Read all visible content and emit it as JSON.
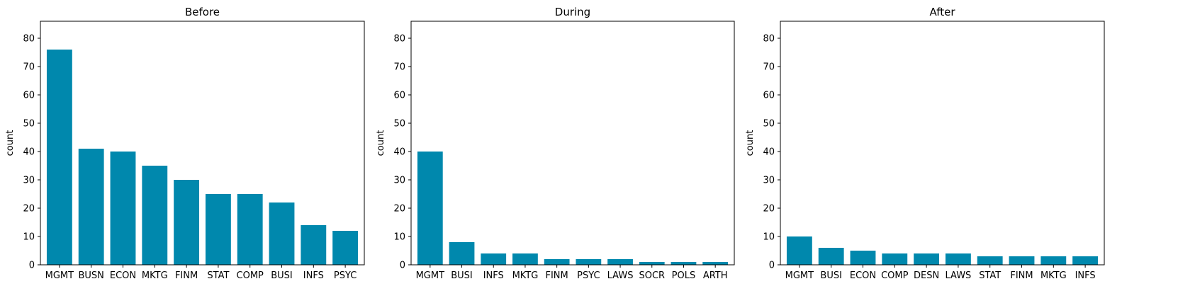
{
  "chart_data": [
    {
      "type": "bar",
      "title": "Before",
      "xlabel": "",
      "ylabel": "count",
      "ylim": [
        0,
        86
      ],
      "yticks": [
        0,
        10,
        20,
        30,
        40,
        50,
        60,
        70,
        80
      ],
      "categories": [
        "MGMT",
        "BUSN",
        "ECON",
        "MKTG",
        "FINM",
        "STAT",
        "COMP",
        "BUSI",
        "INFS",
        "PSYC"
      ],
      "values": [
        76,
        41,
        40,
        35,
        30,
        25,
        25,
        22,
        14,
        12
      ],
      "color": "#0088ad"
    },
    {
      "type": "bar",
      "title": "During",
      "xlabel": "",
      "ylabel": "count",
      "ylim": [
        0,
        86
      ],
      "yticks": [
        0,
        10,
        20,
        30,
        40,
        50,
        60,
        70,
        80
      ],
      "categories": [
        "MGMT",
        "BUSI",
        "INFS",
        "MKTG",
        "FINM",
        "PSYC",
        "LAWS",
        "SOCR",
        "POLS",
        "ARTH"
      ],
      "values": [
        40,
        8,
        4,
        4,
        2,
        2,
        2,
        1,
        1,
        1
      ],
      "color": "#0088ad"
    },
    {
      "type": "bar",
      "title": "After",
      "xlabel": "",
      "ylabel": "count",
      "ylim": [
        0,
        86
      ],
      "yticks": [
        0,
        10,
        20,
        30,
        40,
        50,
        60,
        70,
        80
      ],
      "categories": [
        "MGMT",
        "BUSI",
        "ECON",
        "COMP",
        "DESN",
        "LAWS",
        "STAT",
        "FINM",
        "MKTG",
        "INFS"
      ],
      "values": [
        10,
        6,
        5,
        4,
        4,
        4,
        3,
        3,
        3,
        3
      ],
      "color": "#0088ad"
    }
  ]
}
